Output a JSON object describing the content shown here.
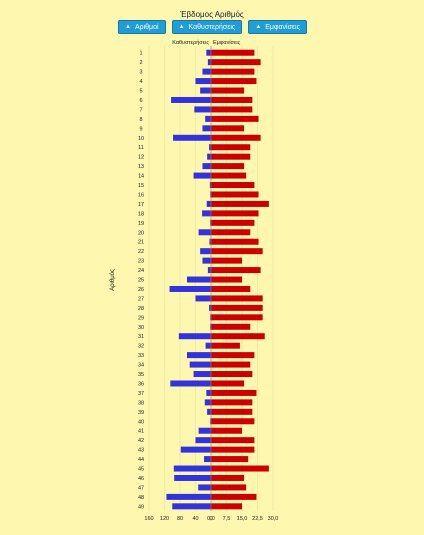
{
  "title": "Έβδομος Αριθμός",
  "buttons": [
    {
      "label": "Αριθμοί",
      "icon": "up-arrow-icon"
    },
    {
      "label": "Καθυστερήσεις",
      "icon": "up-arrow-icon"
    },
    {
      "label": "Εμφανίσεις",
      "icon": "up-arrow-icon"
    }
  ],
  "chart_data": {
    "type": "bar",
    "title": "Έβδομος Αριθμός",
    "ylabel": "Αριθμός",
    "categories": [
      "1",
      "2",
      "3",
      "4",
      "5",
      "6",
      "7",
      "8",
      "9",
      "10",
      "11",
      "12",
      "13",
      "14",
      "15",
      "16",
      "17",
      "18",
      "19",
      "20",
      "21",
      "22",
      "23",
      "24",
      "25",
      "26",
      "27",
      "28",
      "29",
      "30",
      "31",
      "32",
      "33",
      "34",
      "35",
      "36",
      "37",
      "38",
      "39",
      "40",
      "41",
      "42",
      "43",
      "44",
      "45",
      "46",
      "47",
      "48",
      "49"
    ],
    "series": [
      {
        "name": "Καθυστερήσεις",
        "color": "#3333dd",
        "xlim": [
          0,
          160
        ],
        "tick_labels": [
          "160",
          "120",
          "80",
          "40",
          "0"
        ],
        "values": [
          12,
          8,
          22,
          40,
          28,
          103,
          43,
          15,
          22,
          98,
          5,
          10,
          22,
          45,
          3,
          2,
          11,
          23,
          2,
          32,
          4,
          28,
          22,
          8,
          62,
          107,
          40,
          5,
          2,
          2,
          83,
          14,
          62,
          55,
          45,
          105,
          12,
          16,
          10,
          2,
          32,
          40,
          78,
          18,
          96,
          95,
          33,
          115,
          100
        ]
      },
      {
        "name": "Εμφανίσεις",
        "color": "#cc0000",
        "xlim": [
          0,
          30
        ],
        "tick_labels": [
          "0,0",
          "7,5",
          "15,0",
          "22,5",
          "30,0"
        ],
        "values": [
          21,
          24,
          21,
          22,
          16,
          20,
          20,
          23,
          16,
          24,
          19,
          19,
          16,
          17,
          21,
          23,
          28,
          23,
          21,
          19,
          23,
          25,
          15,
          24,
          15,
          19,
          25,
          25,
          25,
          19,
          26,
          14,
          21,
          19,
          20,
          16,
          22,
          20,
          20,
          21,
          15,
          21,
          21,
          18,
          28,
          16,
          17,
          22,
          15
        ]
      }
    ]
  }
}
